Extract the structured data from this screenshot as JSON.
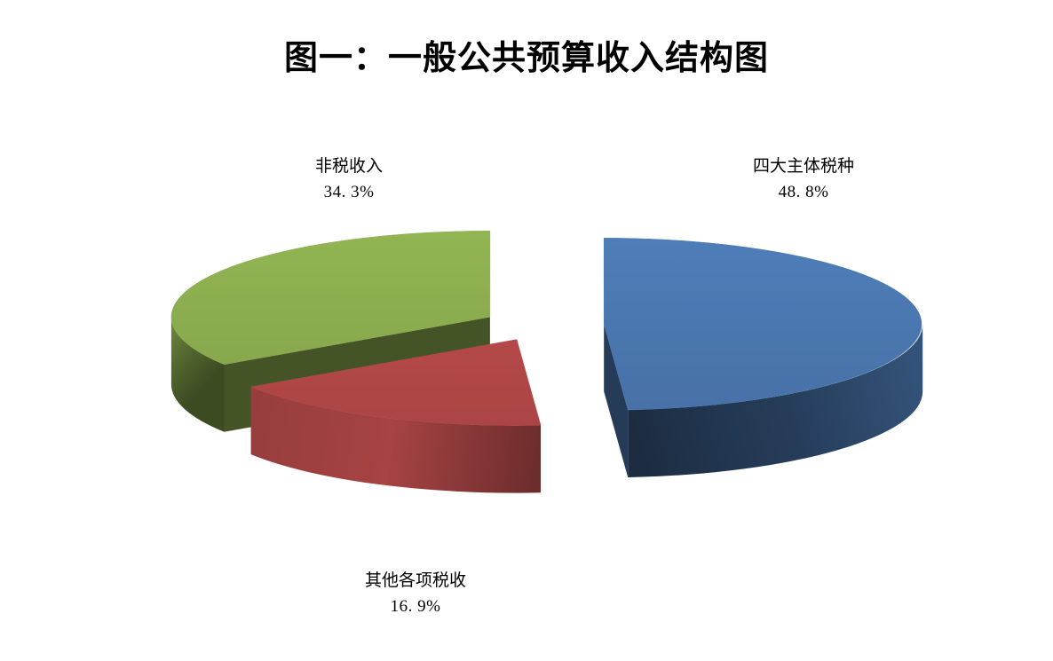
{
  "title": "图一：一般公共预算收入结构图",
  "chart_data": {
    "type": "pie",
    "title": "图一：一般公共预算收入结构图",
    "is_3d": true,
    "exploded": true,
    "start_angle_deg": 0,
    "direction": "clockwise",
    "legend_position": "none",
    "background": "#ffffff",
    "slices": [
      {
        "label": "四大主体税种",
        "value": 48.8,
        "pct_label": "48. 8%",
        "color": "#4a76ae"
      },
      {
        "label": "其他各项税收",
        "value": 16.9,
        "pct_label": "16. 9%",
        "color": "#b24848"
      },
      {
        "label": "非税收入",
        "value": 34.3,
        "pct_label": "34. 3%",
        "color": "#8aab4e"
      }
    ]
  }
}
